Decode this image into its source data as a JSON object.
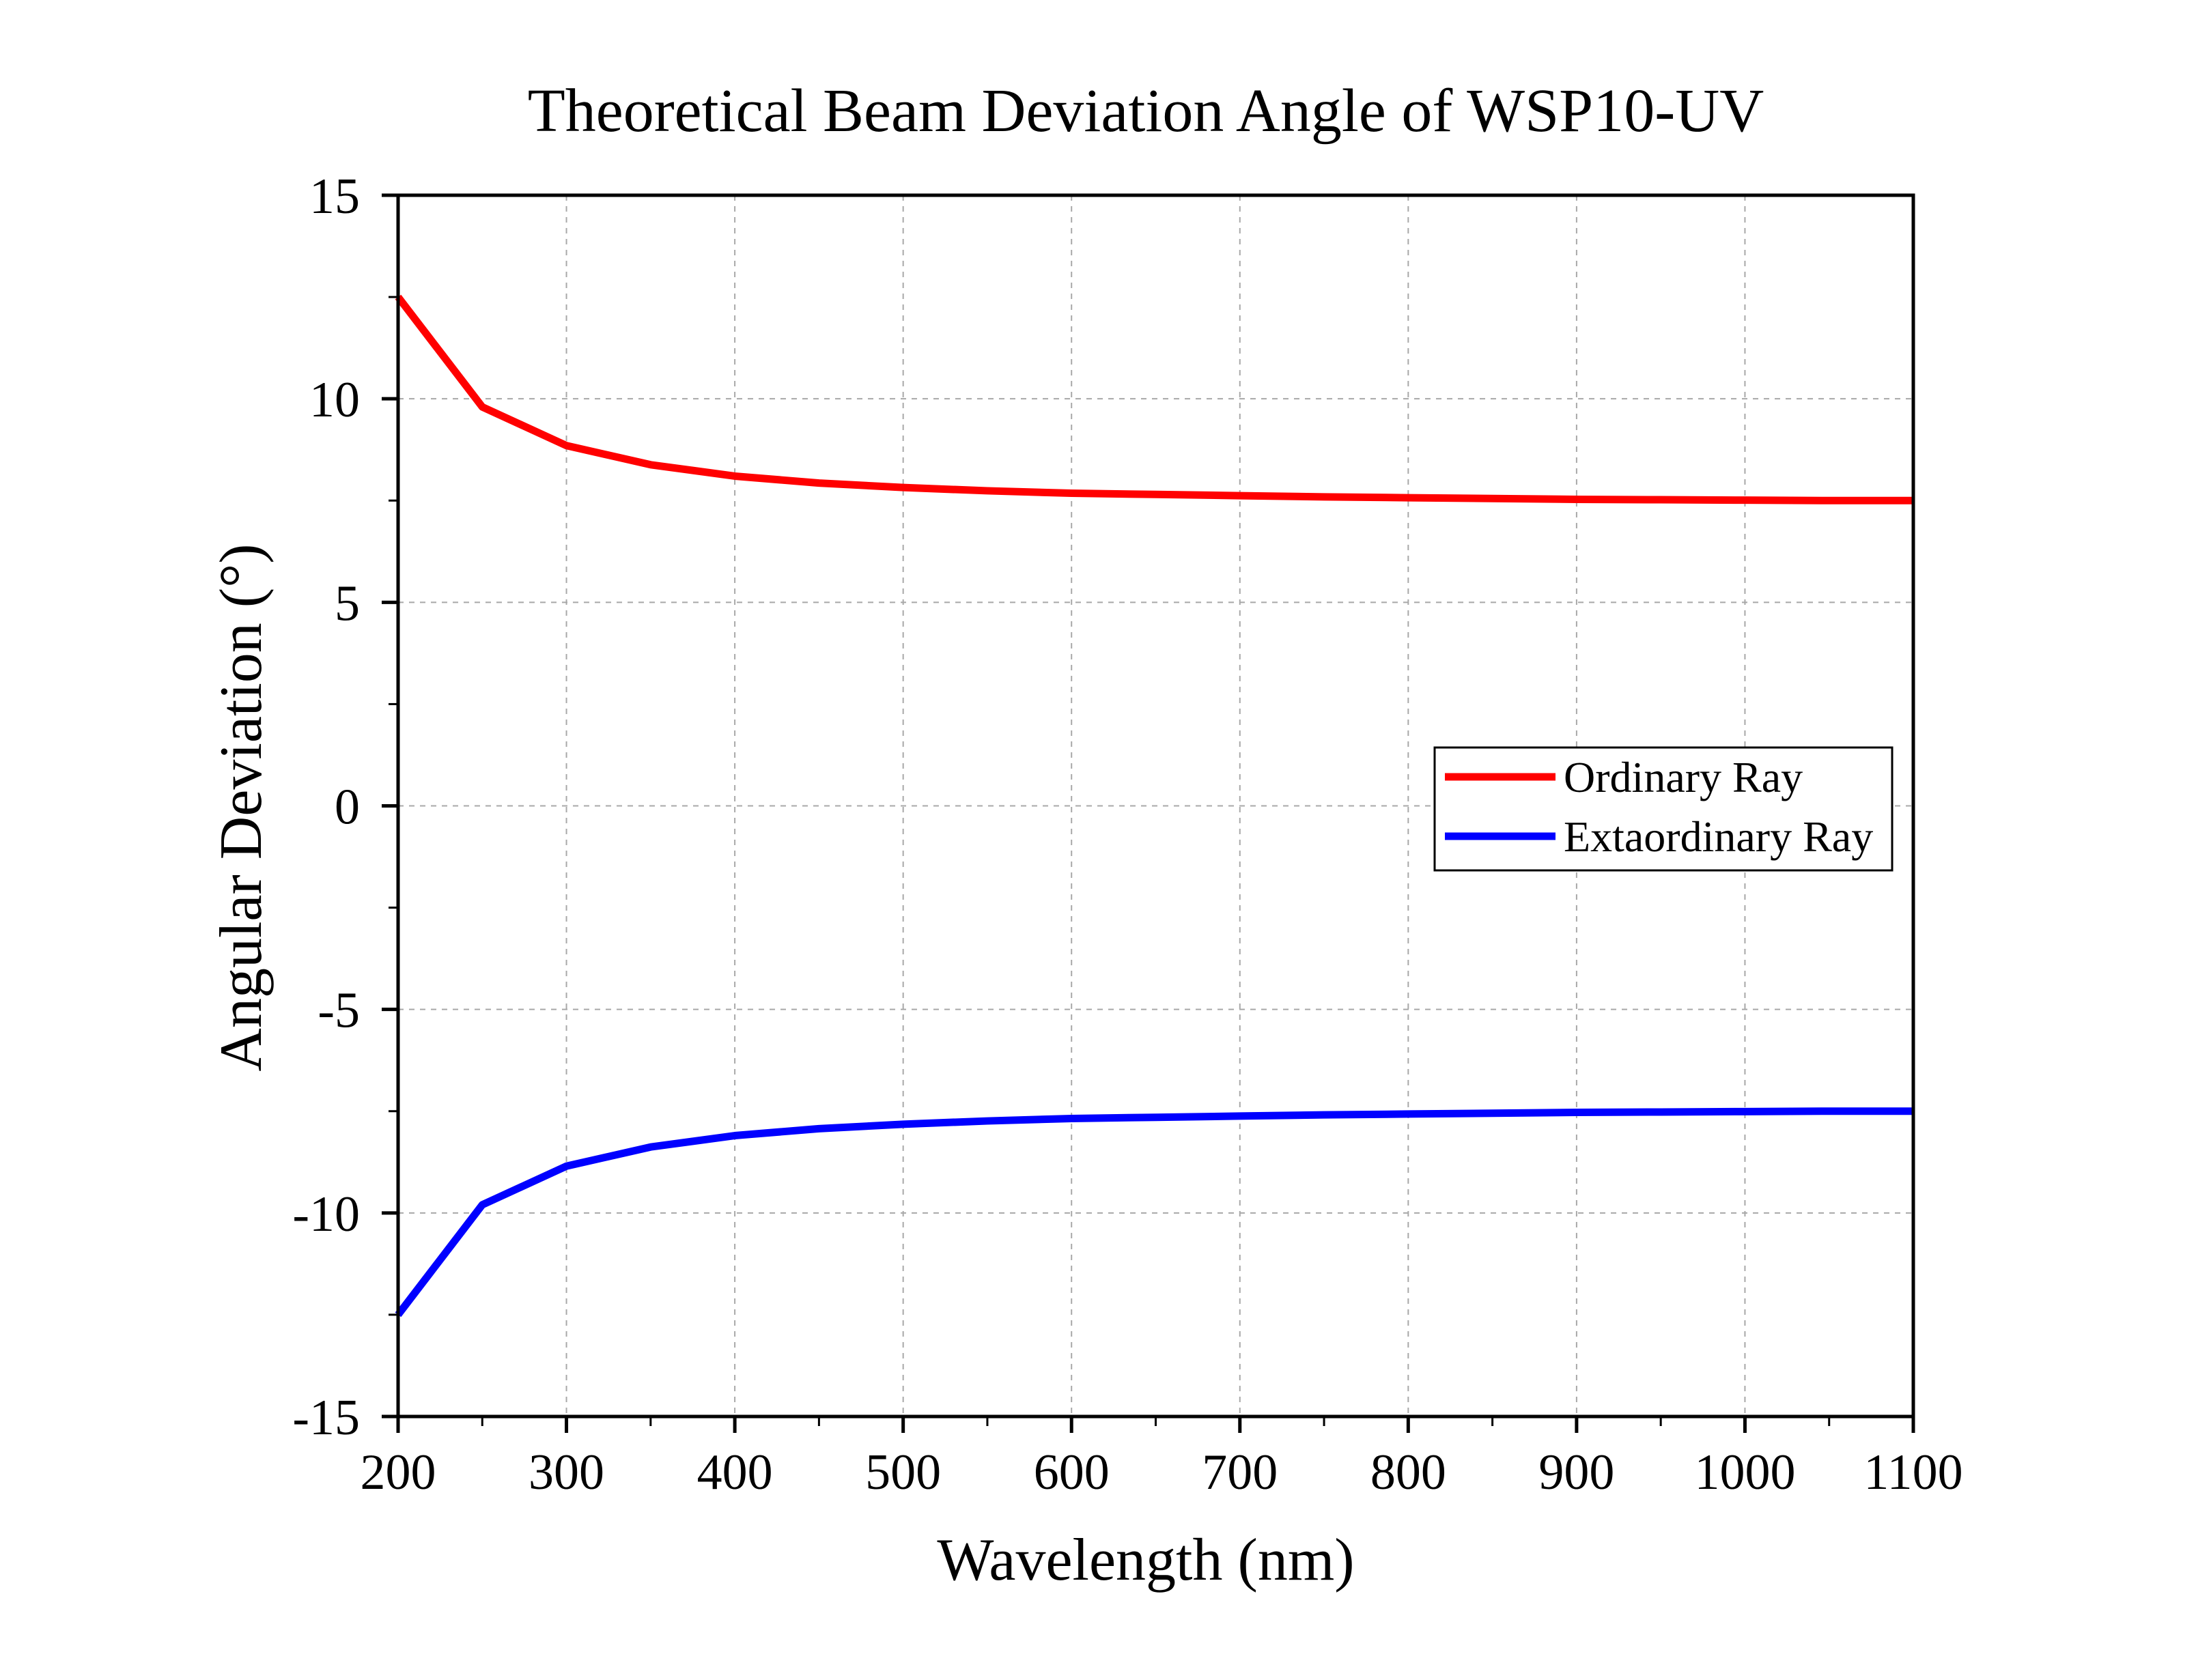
{
  "chart_data": {
    "type": "line",
    "title": "Theoretical Beam Deviation Angle of WSP10-UV",
    "xlabel": "Wavelength (nm)",
    "ylabel": "Angular Deviation (°)",
    "xlim": [
      200,
      1100
    ],
    "ylim": [
      -15,
      15
    ],
    "x_ticks": [
      200,
      300,
      400,
      500,
      600,
      700,
      800,
      900,
      1000,
      1100
    ],
    "x_tick_labels": [
      "200",
      "300",
      "400",
      "500",
      "600",
      "700",
      "800",
      "900",
      "1000",
      "1100"
    ],
    "y_ticks": [
      15,
      10,
      5,
      0,
      -5,
      -10,
      -15
    ],
    "y_tick_labels": [
      "15",
      "10",
      "5",
      "0",
      "-5",
      "-10",
      "-15"
    ],
    "grid": true,
    "legend_position": "right",
    "x": [
      200,
      250,
      300,
      350,
      400,
      450,
      500,
      550,
      600,
      650,
      700,
      750,
      800,
      850,
      900,
      950,
      1000,
      1050,
      1100
    ],
    "series": [
      {
        "name": "Ordinary Ray",
        "color": "#ff0000",
        "values": [
          12.5,
          9.8,
          8.85,
          8.38,
          8.1,
          7.93,
          7.82,
          7.74,
          7.68,
          7.65,
          7.62,
          7.59,
          7.57,
          7.55,
          7.53,
          7.52,
          7.51,
          7.5,
          7.5
        ]
      },
      {
        "name": "Extaordinary Ray",
        "color": "#0000ff",
        "values": [
          -12.5,
          -9.8,
          -8.85,
          -8.38,
          -8.1,
          -7.93,
          -7.82,
          -7.74,
          -7.68,
          -7.65,
          -7.62,
          -7.59,
          -7.57,
          -7.55,
          -7.53,
          -7.52,
          -7.51,
          -7.5,
          -7.5
        ]
      }
    ]
  }
}
